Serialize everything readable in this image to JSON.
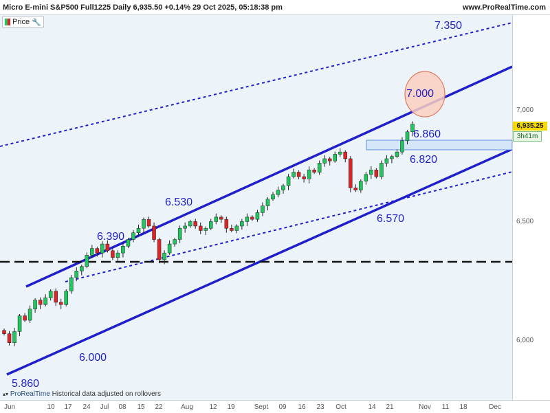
{
  "header": {
    "title": "Micro E-mini S&P500 Full1225 Daily 6,935.50 +0.14% 29 Oct 2025, 05:18:38 pm",
    "site": "www.ProRealTime.com"
  },
  "legend": {
    "label": "Price"
  },
  "price_badge": "6,935.25",
  "time_badge": "3h41m",
  "footer": {
    "brand": "ProRealTime",
    "note": "Historical data adjusted on rollovers"
  },
  "colors": {
    "up": "#22c55e",
    "down": "#dc2626",
    "trend": "#1f1fcc",
    "zone_fill": "#d6e6f9",
    "zone_stroke": "#5b8fe0",
    "circle_fill": "#f9cfc0",
    "circle_stroke": "#e07a5f",
    "background": "#edf4f9"
  },
  "chart_data": {
    "type": "candlestick",
    "x_axis": {
      "ticks": [
        "Jun",
        "10",
        "17",
        "24",
        "Jul",
        "08",
        "15",
        "22",
        "Aug",
        "12",
        "19",
        "Sept",
        "09",
        "16",
        "23",
        "Oct",
        "14",
        "21",
        "Nov",
        "11",
        "18",
        "Dec"
      ]
    },
    "y_axis": {
      "ticks": [
        "7,000",
        "6,500",
        "6,000"
      ],
      "range": [
        5705,
        7420
      ]
    },
    "annotations": [
      {
        "id": "lvl-7350",
        "text": "7.350"
      },
      {
        "id": "lvl-7000",
        "text": "7.000"
      },
      {
        "id": "lvl-6860",
        "text": "6.860"
      },
      {
        "id": "lvl-6820",
        "text": "6.820"
      },
      {
        "id": "lvl-6570",
        "text": "6.570"
      },
      {
        "id": "lvl-6530",
        "text": "6.530"
      },
      {
        "id": "lvl-6390",
        "text": "6.390"
      },
      {
        "id": "lvl-6000",
        "text": "6.000"
      },
      {
        "id": "lvl-5860",
        "text": "5.860"
      }
    ],
    "horizontal_line": 6330,
    "resistance_zone": [
      6820,
      6865
    ],
    "last_price": 6935.25,
    "closes_approx": [
      6000,
      5960,
      6010,
      6080,
      6060,
      6110,
      6150,
      6130,
      6160,
      6190,
      6140,
      6130,
      6190,
      6250,
      6280,
      6300,
      6350,
      6380,
      6360,
      6400,
      6370,
      6340,
      6360,
      6390,
      6420,
      6450,
      6470,
      6510,
      6480,
      6420,
      6330,
      6360,
      6400,
      6420,
      6470,
      6480,
      6500,
      6480,
      6460,
      6470,
      6500,
      6520,
      6510,
      6470,
      6460,
      6480,
      6500,
      6520,
      6510,
      6540,
      6570,
      6600,
      6620,
      6640,
      6660,
      6700,
      6720,
      6700,
      6690,
      6730,
      6720,
      6760,
      6780,
      6770,
      6800,
      6810,
      6780,
      6650,
      6640,
      6680,
      6710,
      6730,
      6700,
      6760,
      6780,
      6790,
      6810,
      6860,
      6900,
      6935
    ]
  }
}
